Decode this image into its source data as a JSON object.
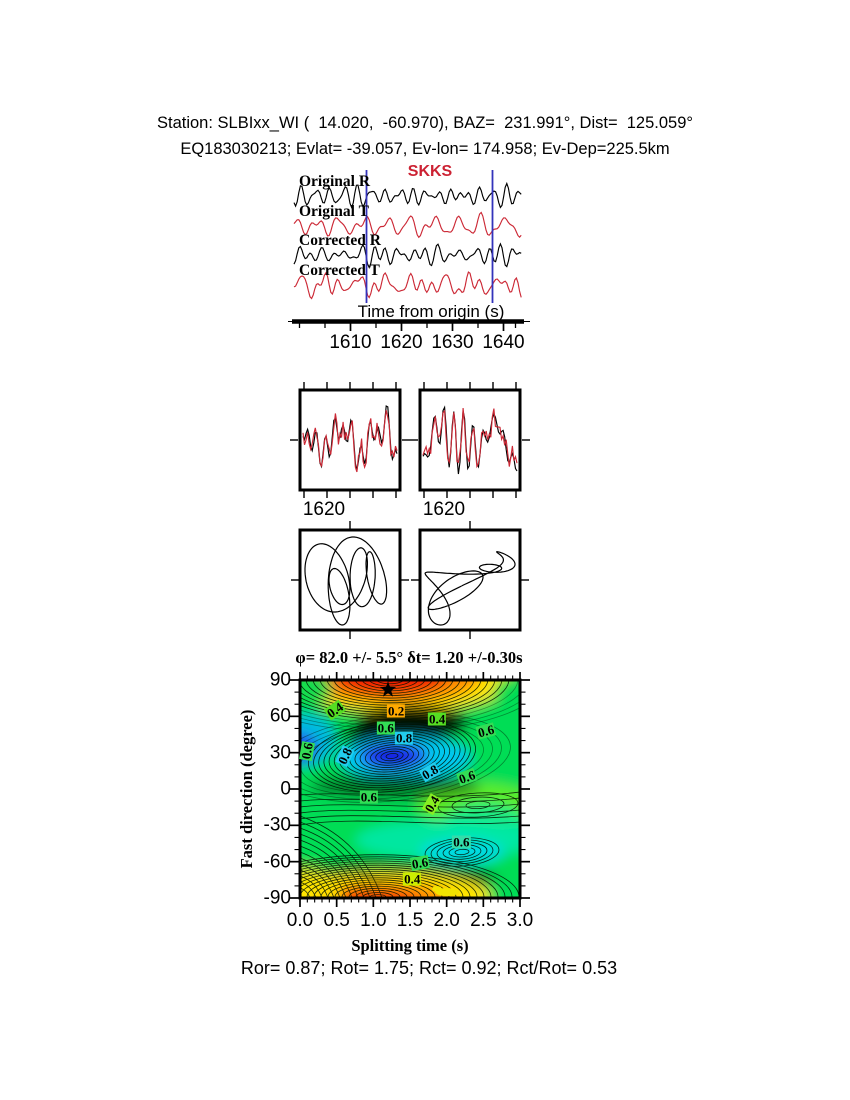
{
  "header": {
    "line1": "Station: SLBIxx_WI (  14.020,  -60.970), BAZ=  231.991°, Dist=  125.059°",
    "line2": "EQ183030213; Evlat= -39.057, Ev-lon= 174.958; Ev-Dep=225.5km"
  },
  "phase_label": "SKKS",
  "phase_label_color": "#cc2233",
  "waveform_panel": {
    "trace_labels": [
      "Original R",
      "Original T",
      "Corrected R",
      "Corrected T"
    ],
    "trace_colors": [
      "#000000",
      "#cc2936",
      "#000000",
      "#cc2936"
    ],
    "window_line_color": "#3333bb",
    "axis_title": "Time from origin (s)",
    "tick_labels": [
      "1610",
      "1620",
      "1630",
      "1640"
    ]
  },
  "middle_panels": {
    "left_label": "1620",
    "right_label": "1620",
    "overlay_colors": [
      "#000000",
      "#cc2936"
    ]
  },
  "summary": "Ror= 0.87; Rot= 1.75; Rct= 0.92; Rct/Rot= 0.53",
  "chart_data": {
    "type": "heatmap",
    "subtype": "filled contour misfit surface (shear-wave splitting grid search)",
    "title": "φ= 82.0 +/- 5.5° δt= 1.20 +/-0.30s",
    "xlabel": "Splitting time (s)",
    "ylabel": "Fast direction (degree)",
    "xlim": [
      0.0,
      3.0
    ],
    "ylim": [
      -90,
      90
    ],
    "xticks": [
      0.0,
      0.5,
      1.0,
      1.5,
      2.0,
      2.5,
      3.0
    ],
    "xtick_labels": [
      "0.0",
      "0.5",
      "1.0",
      "1.5",
      "2.0",
      "2.5",
      "3.0"
    ],
    "yticks": [
      90,
      60,
      30,
      0,
      -30,
      -60,
      -90
    ],
    "ytick_labels": [
      "90",
      "60",
      "30",
      "0",
      "-30",
      "-60",
      "-90"
    ],
    "grid": false,
    "legend": null,
    "best_fit": {
      "fast_direction_deg": 82.0,
      "fast_direction_err_deg": 5.5,
      "splitting_time_s": 1.2,
      "splitting_time_err_s": 0.3
    },
    "star_marker": {
      "x": 1.2,
      "y": 82
    },
    "misfit_minimum": {
      "x": 1.25,
      "y": 27
    },
    "misfit_maxima": [
      {
        "x": 1.2,
        "y": 90
      },
      {
        "x": 1.1,
        "y": -90
      }
    ],
    "contour_labels": [
      {
        "text": "0.4",
        "x": 0.48,
        "y": 65,
        "rot": -35,
        "bg": "#55dd22"
      },
      {
        "text": "0.2",
        "x": 1.31,
        "y": 64,
        "rot": 0,
        "bg": "#ffaa00"
      },
      {
        "text": "0.4",
        "x": 1.87,
        "y": 58,
        "rot": 0,
        "bg": "#55dd22"
      },
      {
        "text": "0.6",
        "x": 1.17,
        "y": 50,
        "rot": 0,
        "bg": "#33dd55"
      },
      {
        "text": "0.8",
        "x": 1.42,
        "y": 42,
        "rot": 0,
        "bg": "#22ccee"
      },
      {
        "text": "0.6",
        "x": 2.54,
        "y": 48,
        "rot": -15,
        "bg": "#33dd55"
      },
      {
        "text": "0.6",
        "x": 0.1,
        "y": 31,
        "rot": -80,
        "bg": "#33dd55"
      },
      {
        "text": "0.8",
        "x": 0.61,
        "y": 27,
        "rot": -65,
        "bg": "#22ccee"
      },
      {
        "text": "0.8",
        "x": 1.77,
        "y": 14,
        "rot": -30,
        "bg": "#22ccee"
      },
      {
        "text": "0.6",
        "x": 2.28,
        "y": 10,
        "rot": -20,
        "bg": "#33dd55"
      },
      {
        "text": "0.6",
        "x": 0.94,
        "y": -7,
        "rot": 0,
        "bg": "#33dd55"
      },
      {
        "text": "0.4",
        "x": 1.8,
        "y": -12,
        "rot": -60,
        "bg": "#88ee22"
      },
      {
        "text": "0.6",
        "x": 2.2,
        "y": -44,
        "rot": 0,
        "bg": "#33ddaa"
      },
      {
        "text": "0.6",
        "x": 1.64,
        "y": -61,
        "rot": -10,
        "bg": "#33dd55"
      },
      {
        "text": "0.4",
        "x": 1.53,
        "y": -74,
        "rot": 0,
        "bg": "#ccee00"
      }
    ],
    "colormap": [
      "#0e00e0",
      "#2133f2",
      "#00c8f0",
      "#00e8a8",
      "#00dd55",
      "#88ee22",
      "#ffe400",
      "#ff8c00",
      "#f21800"
    ]
  }
}
